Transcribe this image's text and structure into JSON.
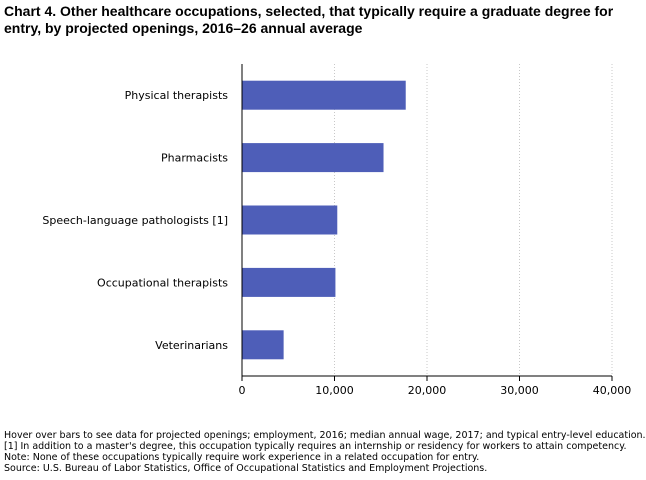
{
  "chart_data": {
    "type": "bar",
    "orientation": "horizontal",
    "title": "Chart 4. Other healthcare occupations, selected, that typically require a graduate degree for entry, by projected openings, 2016–26 annual average",
    "xlabel": "",
    "ylabel": "",
    "categories": [
      "Physical therapists",
      "Pharmacists",
      "Speech-language pathologists [1]",
      "Occupational therapists",
      "Veterinarians"
    ],
    "values": [
      17700,
      15300,
      10300,
      10100,
      4500
    ],
    "xlim": [
      0,
      40000
    ],
    "ticks": [
      0,
      10000,
      20000,
      30000,
      40000
    ],
    "tick_labels": [
      "0",
      "10,000",
      "20,000",
      "30,000",
      "40,000"
    ],
    "grid": "vertical-dotted",
    "bar_color": "#4e5eb8"
  },
  "notes": [
    "Hover over bars to see data for projected openings; employment, 2016; median annual wage, 2017; and typical entry-level education.",
    "[1] In addition to a master's degree, this occupation typically requires an internship or residency for workers to attain competency.",
    "Note: None of these occupations typically require work experience in a related occupation for entry.",
    "Source: U.S. Bureau of Labor Statistics, Office of Occupational Statistics and Employment Projections."
  ]
}
